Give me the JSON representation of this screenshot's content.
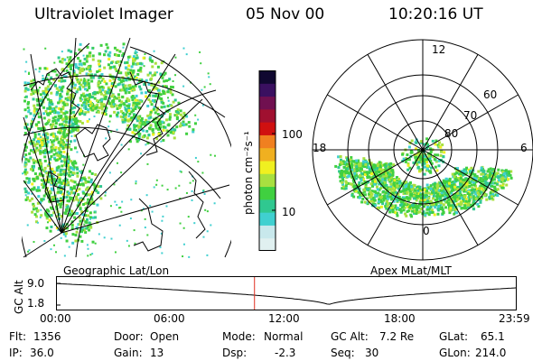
{
  "header": {
    "instrument": "Ultraviolet Imager",
    "date": "05 Nov 00",
    "time": "10:20:16 UT"
  },
  "colorbar": {
    "unit_label": "photon cm⁻²s⁻¹",
    "ticks": [
      "100",
      "10"
    ],
    "colors": [
      "#e0f0f0",
      "#c8e8ec",
      "#40d0d0",
      "#30c890",
      "#40d040",
      "#a8e040",
      "#f0f020",
      "#f0b020",
      "#f08020",
      "#d01010",
      "#a01030",
      "#701050",
      "#3a1060",
      "#100830"
    ]
  },
  "left_panel": {
    "label": "Geographic Lat/Lon"
  },
  "right_panel": {
    "label": "Apex MLat/MLT",
    "mlt_labels": [
      "12",
      "18",
      "6",
      "0"
    ],
    "lat_labels": [
      "60",
      "70",
      "80"
    ]
  },
  "timeline": {
    "y_label": "GC Alt",
    "y_ticks": [
      "9.0",
      "1.8"
    ],
    "x_ticks": [
      "00:00",
      "06:00",
      "12:00",
      "18:00",
      "23:59"
    ],
    "current_marker_hours": 10.34
  },
  "status": {
    "flt": {
      "label": "Flt:",
      "value": "1356"
    },
    "ip": {
      "label": "IP:",
      "value": "36.0"
    },
    "door": {
      "label": "Door:",
      "value": "Open"
    },
    "gain": {
      "label": "Gain:",
      "value": "13"
    },
    "mode": {
      "label": "Mode:",
      "value": "Normal"
    },
    "dsp": {
      "label": "Dsp:",
      "value": "-2.3"
    },
    "gcalt": {
      "label": "GC Alt:",
      "value": "7.2 Re"
    },
    "seq": {
      "label": "Seq:",
      "value": "30"
    },
    "glat": {
      "label": "GLat:",
      "value": "65.1"
    },
    "glon": {
      "label": "GLon:",
      "value": "214.0"
    }
  }
}
